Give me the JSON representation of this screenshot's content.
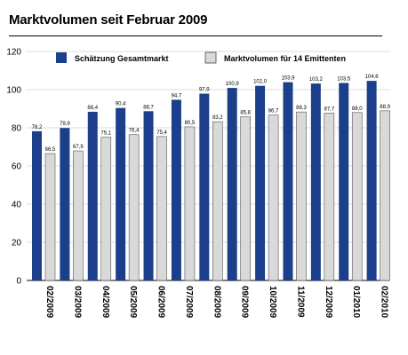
{
  "page": {
    "title": "Marktvolumen seit Februar 2009"
  },
  "chart_data": {
    "type": "bar",
    "categories": [
      "02/2009",
      "03/2009",
      "04/2009",
      "05/2009",
      "06/2009",
      "07/2009",
      "08/2009",
      "09/2009",
      "10/2009",
      "11/2009",
      "12/2009",
      "01/2010",
      "02/2010"
    ],
    "series": [
      {
        "name": "Schätzung Gesamtmarkt",
        "color": "#1c3f8c",
        "values": [
          78.2,
          79.9,
          88.4,
          90.4,
          88.7,
          94.7,
          97.9,
          100.9,
          102.0,
          103.9,
          103.2,
          103.5,
          104.6
        ],
        "labels": [
          "78,2",
          "79,9",
          "88,4",
          "90,4",
          "88,7",
          "94,7",
          "97,9",
          "100,9",
          "102,0",
          "103,9",
          "103,2",
          "103,5",
          "104,6"
        ]
      },
      {
        "name": "Marktvolumen für 14 Emittenten",
        "color": "#d9d9d9",
        "values": [
          66.5,
          67.9,
          75.1,
          76.4,
          75.4,
          80.5,
          83.2,
          85.8,
          86.7,
          88.3,
          87.7,
          88.0,
          88.9
        ],
        "labels": [
          "66,5",
          "67,9",
          "75,1",
          "76,4",
          "75,4",
          "80,5",
          "83,2",
          "85,8",
          "86,7",
          "88,3",
          "87,7",
          "88,0",
          "88,9"
        ]
      }
    ],
    "ylim": [
      0,
      120
    ],
    "yticks": [
      "0",
      "20",
      "40",
      "60",
      "80",
      "100",
      "120"
    ],
    "grid": true,
    "legend_position": "top"
  }
}
